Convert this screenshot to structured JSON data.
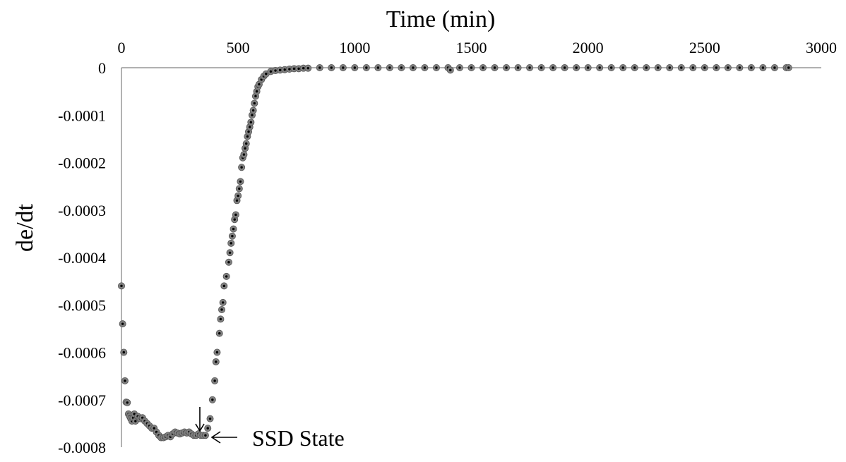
{
  "chart_data": {
    "type": "scatter",
    "title": "",
    "xlabel": "Time (min)",
    "ylabel": "de/dt",
    "xlim": [
      0,
      3000
    ],
    "ylim": [
      -0.0008,
      0
    ],
    "x_axis_position": "top",
    "x_ticks": [
      0,
      500,
      1000,
      1500,
      2000,
      2500,
      3000
    ],
    "x_tick_labels": [
      "0",
      "500",
      "1000",
      "1500",
      "2000",
      "2500",
      "3000"
    ],
    "y_ticks": [
      0,
      -0.0001,
      -0.0002,
      -0.0003,
      -0.0004,
      -0.0005,
      -0.0006,
      -0.0007,
      -0.0008
    ],
    "y_tick_labels": [
      "0",
      "-0.0001",
      "-0.0002",
      "-0.0003",
      "-0.0004",
      "-0.0005",
      "-0.0006",
      "-0.0007",
      "-0.0008"
    ],
    "grid": false,
    "legend": "none",
    "marker_color": "#808080",
    "series": [
      {
        "points": [
          [
            0,
            -0.00046
          ],
          [
            5,
            -0.00054
          ],
          [
            10,
            -0.0006
          ],
          [
            15,
            -0.00066
          ],
          [
            20,
            -0.000705
          ],
          [
            25,
            -0.000706
          ],
          [
            30,
            -0.00073
          ],
          [
            35,
            -0.000735
          ],
          [
            40,
            -0.00074
          ],
          [
            45,
            -0.000745
          ],
          [
            50,
            -0.000738
          ],
          [
            55,
            -0.00073
          ],
          [
            60,
            -0.000745
          ],
          [
            70,
            -0.000735
          ],
          [
            80,
            -0.00074
          ],
          [
            90,
            -0.000738
          ],
          [
            100,
            -0.000745
          ],
          [
            110,
            -0.00075
          ],
          [
            120,
            -0.000755
          ],
          [
            130,
            -0.00076
          ],
          [
            140,
            -0.00076
          ],
          [
            150,
            -0.000768
          ],
          [
            160,
            -0.000775
          ],
          [
            170,
            -0.00078
          ],
          [
            180,
            -0.00078
          ],
          [
            190,
            -0.000778
          ],
          [
            200,
            -0.000775
          ],
          [
            210,
            -0.000778
          ],
          [
            220,
            -0.000772
          ],
          [
            230,
            -0.000768
          ],
          [
            240,
            -0.00077
          ],
          [
            250,
            -0.000772
          ],
          [
            260,
            -0.00077
          ],
          [
            270,
            -0.000768
          ],
          [
            280,
            -0.00077
          ],
          [
            290,
            -0.000768
          ],
          [
            300,
            -0.000772
          ],
          [
            310,
            -0.000775
          ],
          [
            320,
            -0.000775
          ],
          [
            330,
            -0.000772
          ],
          [
            340,
            -0.000775
          ],
          [
            350,
            -0.000775
          ],
          [
            360,
            -0.000775
          ],
          [
            370,
            -0.00076
          ],
          [
            380,
            -0.00074
          ],
          [
            390,
            -0.0007
          ],
          [
            400,
            -0.00066
          ],
          [
            405,
            -0.00062
          ],
          [
            410,
            -0.0006
          ],
          [
            420,
            -0.00056
          ],
          [
            425,
            -0.00053
          ],
          [
            430,
            -0.00051
          ],
          [
            435,
            -0.000495
          ],
          [
            440,
            -0.00046
          ],
          [
            450,
            -0.00044
          ],
          [
            460,
            -0.00041
          ],
          [
            465,
            -0.00039
          ],
          [
            470,
            -0.00037
          ],
          [
            475,
            -0.000355
          ],
          [
            480,
            -0.00034
          ],
          [
            485,
            -0.00032
          ],
          [
            490,
            -0.00031
          ],
          [
            495,
            -0.00028
          ],
          [
            500,
            -0.00027
          ],
          [
            505,
            -0.000255
          ],
          [
            510,
            -0.00024
          ],
          [
            515,
            -0.00021
          ],
          [
            520,
            -0.00019
          ],
          [
            525,
            -0.000183
          ],
          [
            530,
            -0.00017
          ],
          [
            535,
            -0.00016
          ],
          [
            540,
            -0.000145
          ],
          [
            545,
            -0.000135
          ],
          [
            550,
            -0.000125
          ],
          [
            555,
            -0.000115
          ],
          [
            560,
            -0.0001
          ],
          [
            565,
            -9e-05
          ],
          [
            570,
            -7.5e-05
          ],
          [
            575,
            -6e-05
          ],
          [
            580,
            -5e-05
          ],
          [
            585,
            -4e-05
          ],
          [
            590,
            -3.5e-05
          ],
          [
            600,
            -2.5e-05
          ],
          [
            610,
            -1.8e-05
          ],
          [
            620,
            -1.3e-05
          ],
          [
            640,
            -8e-06
          ],
          [
            660,
            -6e-06
          ],
          [
            680,
            -5e-06
          ],
          [
            700,
            -4e-06
          ],
          [
            720,
            -3e-06
          ],
          [
            740,
            -2e-06
          ],
          [
            760,
            -2e-06
          ],
          [
            780,
            -1e-06
          ],
          [
            800,
            -1e-06
          ],
          [
            850,
            0
          ],
          [
            900,
            0
          ],
          [
            950,
            0
          ],
          [
            1000,
            0
          ],
          [
            1050,
            0
          ],
          [
            1100,
            0
          ],
          [
            1150,
            0
          ],
          [
            1200,
            0
          ],
          [
            1250,
            0
          ],
          [
            1300,
            0
          ],
          [
            1350,
            0
          ],
          [
            1400,
            0
          ],
          [
            1410,
            -5e-06
          ],
          [
            1450,
            0
          ],
          [
            1500,
            0
          ],
          [
            1550,
            0
          ],
          [
            1600,
            0
          ],
          [
            1650,
            0
          ],
          [
            1700,
            0
          ],
          [
            1750,
            0
          ],
          [
            1800,
            0
          ],
          [
            1850,
            0
          ],
          [
            1900,
            0
          ],
          [
            1950,
            0
          ],
          [
            2000,
            0
          ],
          [
            2050,
            0
          ],
          [
            2100,
            0
          ],
          [
            2150,
            0
          ],
          [
            2200,
            0
          ],
          [
            2250,
            0
          ],
          [
            2300,
            0
          ],
          [
            2350,
            0
          ],
          [
            2400,
            0
          ],
          [
            2450,
            0
          ],
          [
            2500,
            0
          ],
          [
            2550,
            0
          ],
          [
            2600,
            0
          ],
          [
            2650,
            0
          ],
          [
            2700,
            0
          ],
          [
            2750,
            0
          ],
          [
            2800,
            0
          ],
          [
            2850,
            0
          ],
          [
            2860,
            0
          ]
        ]
      }
    ],
    "annotations": [
      {
        "text": "SSD State",
        "x": 360,
        "y": -0.000775
      }
    ]
  }
}
